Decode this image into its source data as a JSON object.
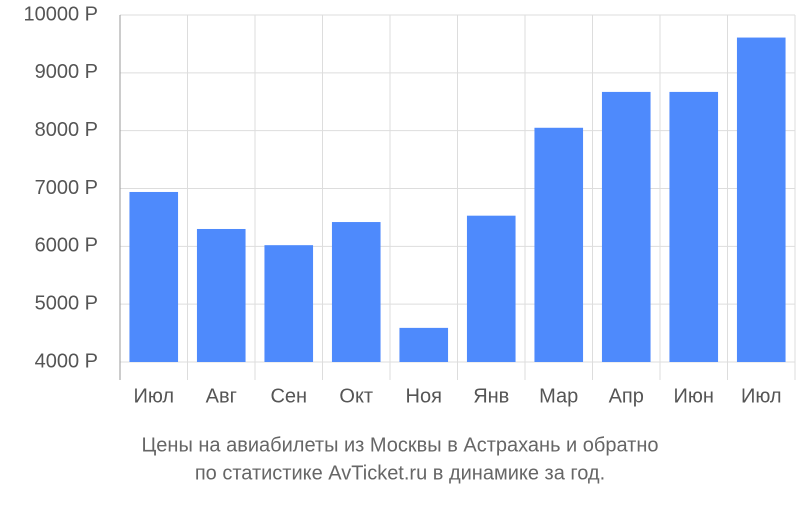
{
  "chart_data": {
    "type": "bar",
    "title_lines": [
      "Цены на авиабилеты из Москвы в Астрахань и обратно",
      "по статистике AvTicket.ru в динамике за год."
    ],
    "categories": [
      "Июл",
      "Авг",
      "Сен",
      "Окт",
      "Ноя",
      "Янв",
      "Мар",
      "Апр",
      "Июн",
      "Июл"
    ],
    "values": [
      6940,
      6300,
      6020,
      6420,
      4590,
      6530,
      8050,
      8670,
      8670,
      9610
    ],
    "color": "#4e8afc",
    "ylim": [
      4000,
      10000
    ],
    "yticks": [
      {
        "value": 4000,
        "label": "4000 Р"
      },
      {
        "value": 5000,
        "label": "5000 Р"
      },
      {
        "value": 6000,
        "label": "6000 Р"
      },
      {
        "value": 7000,
        "label": "7000 Р"
      },
      {
        "value": 8000,
        "label": "8000 Р"
      },
      {
        "value": 9000,
        "label": "9000 Р"
      },
      {
        "value": 10000,
        "label": "10000 Р"
      }
    ],
    "grid": true
  }
}
